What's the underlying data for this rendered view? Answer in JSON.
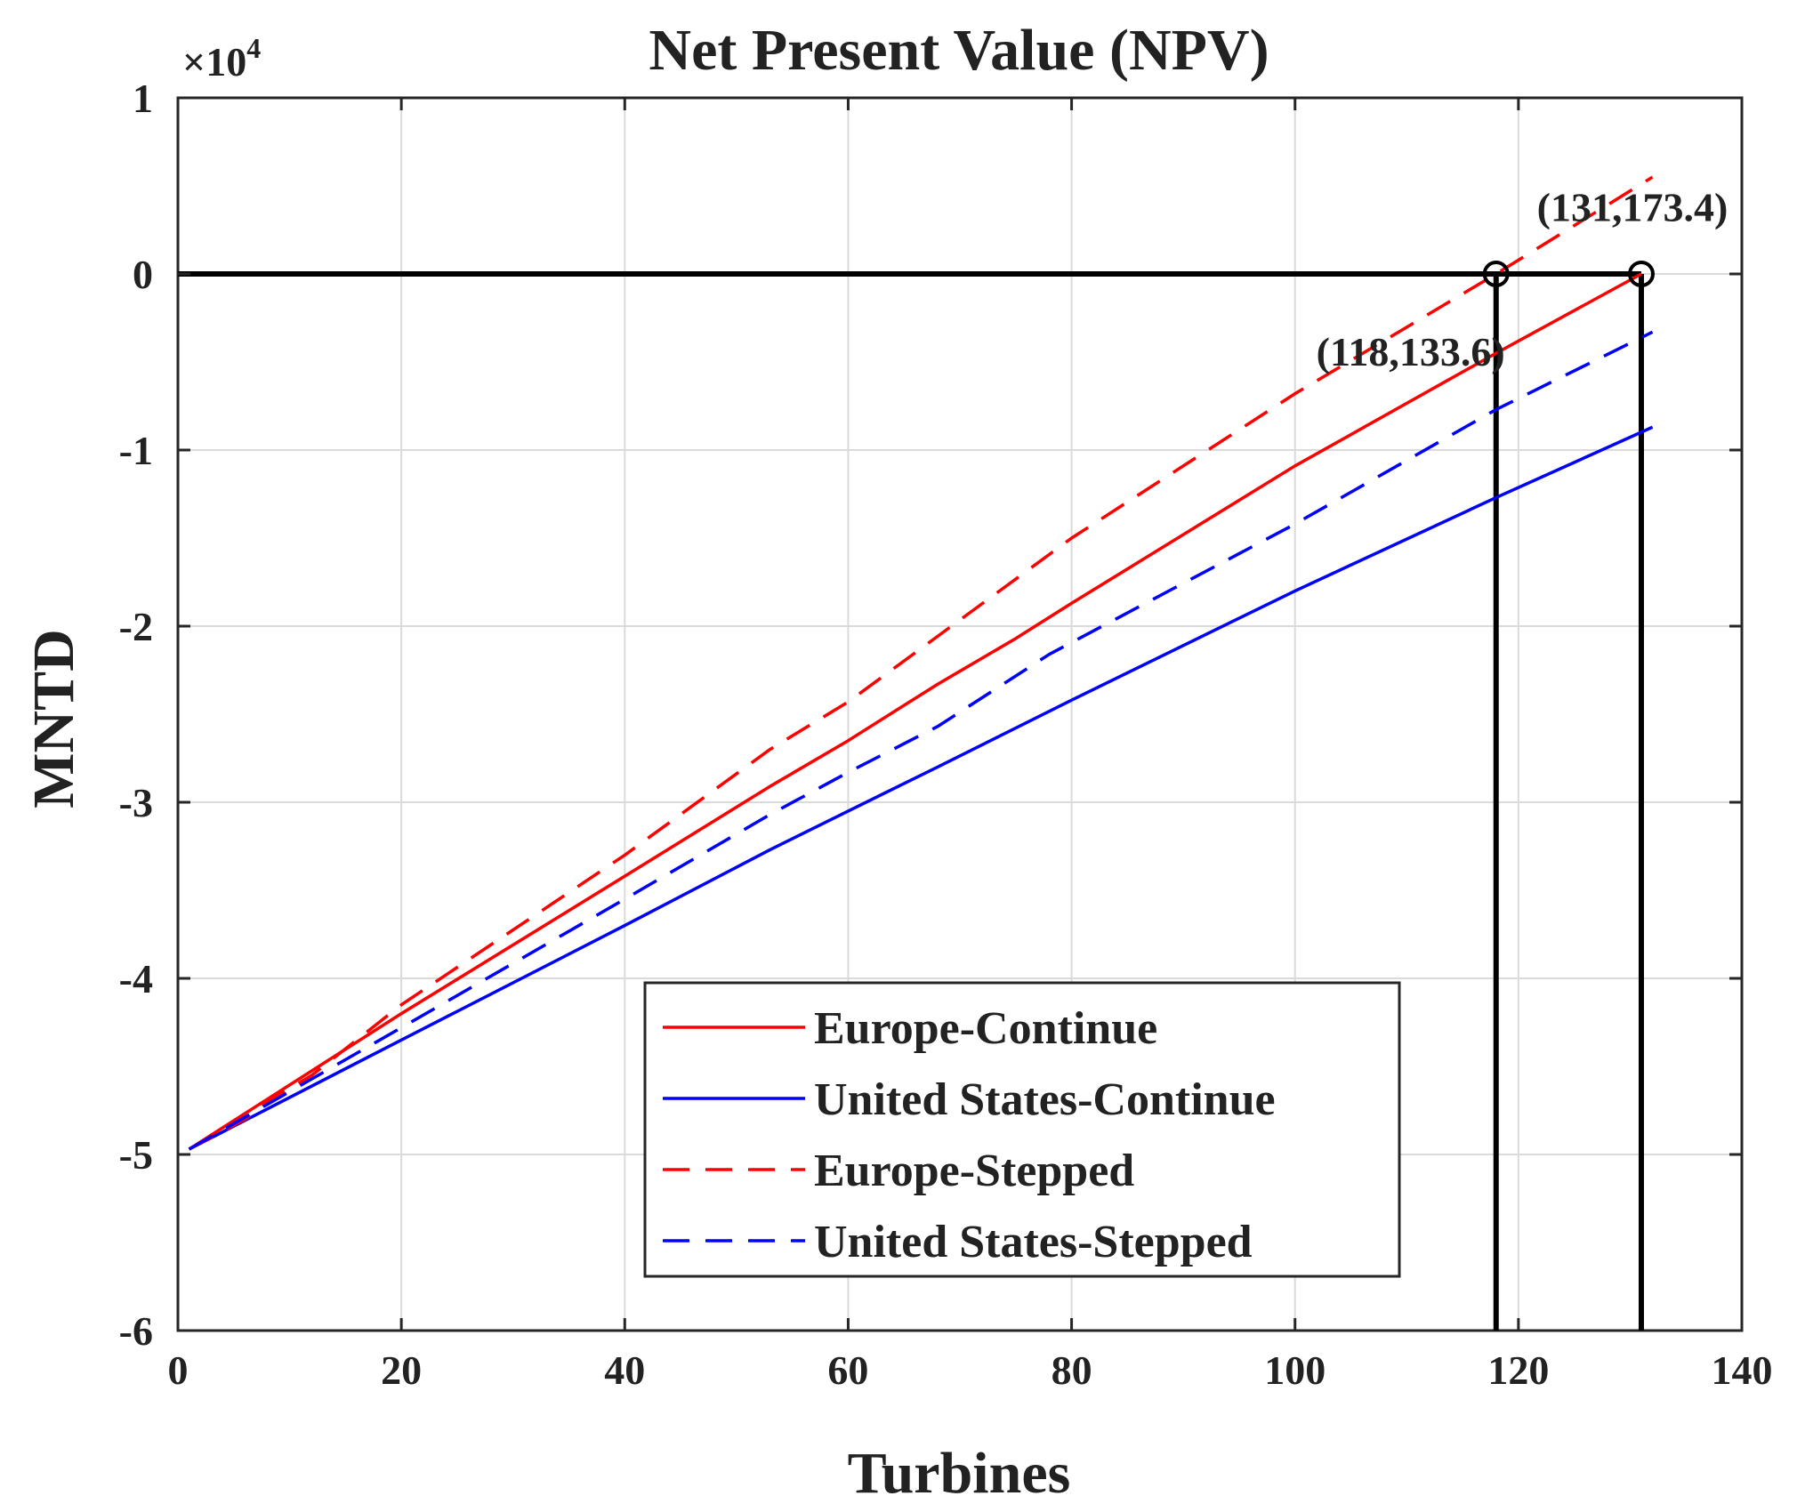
{
  "chart_data": {
    "type": "line",
    "title": "Net Present Value (NPV)",
    "xlabel": "Turbines",
    "ylabel": "MNTD",
    "y_multiplier": "×10",
    "y_exponent": "4",
    "xlim": [
      0,
      140
    ],
    "ylim": [
      -6,
      1
    ],
    "x_ticks": [
      "0",
      "20",
      "40",
      "60",
      "80",
      "100",
      "120",
      "140"
    ],
    "y_ticks": [
      "1",
      "0",
      "-1",
      "-2",
      "-3",
      "-4",
      "-5",
      "-6"
    ],
    "grid": true,
    "legend_position": "bottom-right",
    "units_note": "y values in units of 10^4",
    "series": [
      {
        "name": "Europe-Continue",
        "color": "#ff0000",
        "style": "solid",
        "x": [
          1,
          20,
          40,
          53,
          60,
          68,
          75,
          80,
          100,
          118,
          131
        ],
        "y": [
          -4.97,
          -4.2,
          -3.42,
          -2.91,
          -2.65,
          -2.33,
          -2.07,
          -1.87,
          -1.09,
          -0.45,
          0.0
        ]
      },
      {
        "name": "United States-Continue",
        "color": "#0000ff",
        "style": "solid",
        "x": [
          1,
          20,
          40,
          53,
          60,
          68,
          80,
          100,
          118,
          132
        ],
        "y": [
          -4.97,
          -4.35,
          -3.7,
          -3.27,
          -3.05,
          -2.8,
          -2.42,
          -1.8,
          -1.27,
          -0.87
        ]
      },
      {
        "name": "Europe-Stepped",
        "color": "#ff0000",
        "style": "dashed",
        "x": [
          1,
          6,
          8,
          12,
          20,
          40,
          53,
          60,
          80,
          100,
          118,
          132
        ],
        "y": [
          -4.97,
          -4.8,
          -4.7,
          -4.55,
          -4.15,
          -3.3,
          -2.7,
          -2.43,
          -1.5,
          -0.68,
          0.0,
          0.55
        ]
      },
      {
        "name": "United States-Stepped",
        "color": "#0000ff",
        "style": "dashed",
        "x": [
          1,
          20,
          40,
          53,
          60,
          68,
          78,
          100,
          118,
          132
        ],
        "y": [
          -4.97,
          -4.28,
          -3.55,
          -3.07,
          -2.83,
          -2.57,
          -2.16,
          -1.42,
          -0.77,
          -0.33
        ]
      }
    ],
    "reference_lines": [
      {
        "type": "horizontal",
        "y": 0
      },
      {
        "type": "vertical",
        "x": 118
      },
      {
        "type": "vertical",
        "x": 131
      }
    ],
    "markers": [
      {
        "x": 118,
        "y": 0
      },
      {
        "x": 131,
        "y": 0
      }
    ],
    "annotations": [
      {
        "text": "(131,173.4)",
        "x": 131,
        "y": 0.37
      },
      {
        "text": "(118,133.6)",
        "x": 118,
        "y": -0.45
      }
    ]
  }
}
